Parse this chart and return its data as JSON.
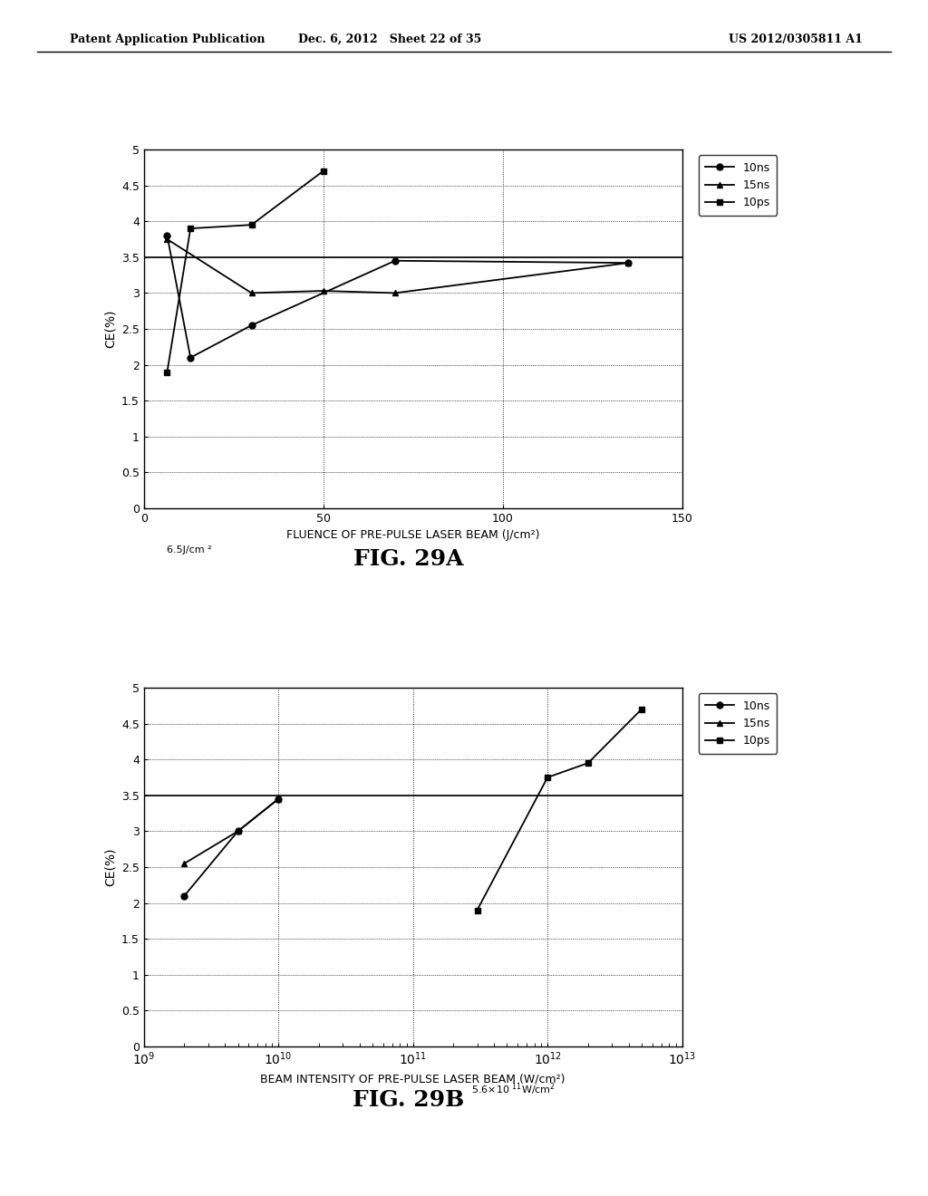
{
  "fig29a": {
    "title": "FIG. 29A",
    "xlabel": "FLUENCE OF PRE-PULSE LASER BEAM (J/cm²)",
    "ylabel": "CE(%)",
    "ylim": [
      0,
      5
    ],
    "yticks": [
      0,
      0.5,
      1,
      1.5,
      2,
      2.5,
      3,
      3.5,
      4,
      4.5,
      5
    ],
    "xlim": [
      0,
      150
    ],
    "xticks": [
      0,
      50,
      100,
      150
    ],
    "hline_y": 3.5,
    "series": [
      {
        "label": "10ns",
        "marker": "o",
        "x": [
          6.5,
          13,
          30,
          70,
          135
        ],
        "y": [
          3.8,
          2.1,
          2.55,
          3.45,
          3.42
        ]
      },
      {
        "label": "15ns",
        "marker": "^",
        "x": [
          6.5,
          30,
          50,
          70,
          135
        ],
        "y": [
          3.75,
          3.0,
          3.03,
          3.0,
          3.42
        ]
      },
      {
        "label": "10ps",
        "marker": "s",
        "x": [
          6.5,
          13,
          30,
          50
        ],
        "y": [
          1.9,
          3.9,
          3.95,
          4.7
        ]
      }
    ]
  },
  "fig29b": {
    "title": "FIG. 29B",
    "xlabel": "BEAM INTENSITY OF PRE-PULSE LASER BEAM (W/cm²)",
    "ylabel": "CE(%)",
    "ylim": [
      0,
      5
    ],
    "yticks": [
      0,
      0.5,
      1,
      1.5,
      2,
      2.5,
      3,
      3.5,
      4,
      4.5,
      5
    ],
    "hline_y": 3.5,
    "series": [
      {
        "label": "10ns",
        "marker": "o",
        "x": [
          2000000000.0,
          5000000000.0,
          10000000000.0
        ],
        "y": [
          2.1,
          3.0,
          3.45
        ]
      },
      {
        "label": "15ns",
        "marker": "^",
        "x": [
          2000000000.0,
          5000000000.0,
          10000000000.0
        ],
        "y": [
          2.55,
          3.0,
          3.45
        ]
      },
      {
        "label": "10ps",
        "marker": "s",
        "x": [
          300000000000.0,
          1000000000000.0,
          2000000000000.0,
          5000000000000.0
        ],
        "y": [
          1.9,
          3.75,
          3.95,
          4.7
        ]
      }
    ]
  },
  "line_color": "#000000",
  "marker_size": 5,
  "line_width": 1.3,
  "header_left": "Patent Application Publication",
  "header_center": "Dec. 6, 2012   Sheet 22 of 35",
  "header_right": "US 2012/0305811 A1"
}
